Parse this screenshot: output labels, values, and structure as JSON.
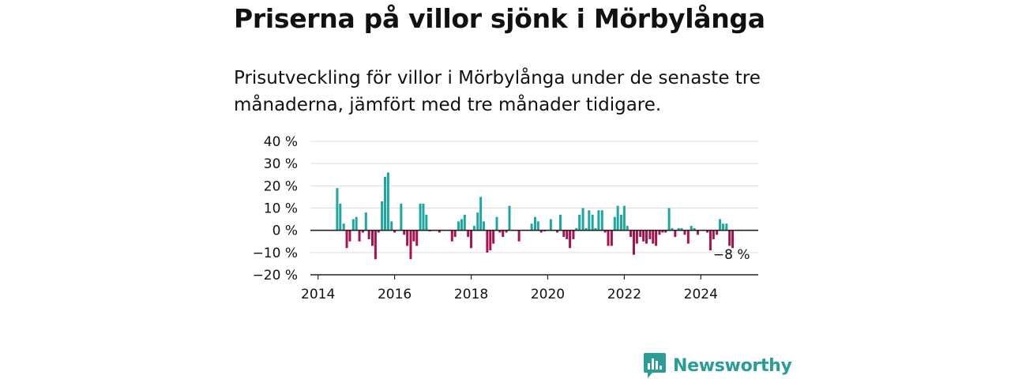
{
  "title": "Priserna på villor sjönk i Mörbylånga",
  "subtitle": "Prisutveckling för villor i Mörbylånga under de senaste tre månaderna, jämfört med tre månader tidigare.",
  "logo_text": "Newsworthy",
  "colors": {
    "positive": "#1ea6a1",
    "negative": "#a8124f",
    "grid": "#dddddd",
    "axis": "#222222",
    "brand": "#2a9d97"
  },
  "chart_data": {
    "type": "bar",
    "title": "",
    "xlabel": "",
    "ylabel": "",
    "ylim": [
      -20,
      40
    ],
    "yticks": [
      40,
      30,
      20,
      10,
      0,
      -10,
      -20
    ],
    "ytick_labels": [
      "40 %",
      "30 %",
      "20 %",
      "10 %",
      "0 %",
      "−10 %",
      "−20 %"
    ],
    "xlim": [
      2013.8,
      2025.5
    ],
    "xticks": [
      "2014",
      "2016",
      "2018",
      "2020",
      "2022",
      "2024"
    ],
    "grid": true,
    "annotation": {
      "text": "−8 %",
      "x": 2024.83,
      "y": -8
    },
    "x": [
      2014.5,
      2014.58,
      2014.67,
      2014.75,
      2014.83,
      2014.92,
      2015.0,
      2015.08,
      2015.17,
      2015.25,
      2015.33,
      2015.42,
      2015.5,
      2015.58,
      2015.67,
      2015.75,
      2015.83,
      2015.92,
      2016.0,
      2016.17,
      2016.25,
      2016.33,
      2016.42,
      2016.5,
      2016.58,
      2016.67,
      2016.75,
      2016.83,
      2016.92,
      2017.17,
      2017.5,
      2017.58,
      2017.67,
      2017.75,
      2017.83,
      2017.92,
      2018.0,
      2018.08,
      2018.17,
      2018.25,
      2018.33,
      2018.42,
      2018.5,
      2018.58,
      2018.67,
      2018.75,
      2018.83,
      2018.92,
      2019.0,
      2019.25,
      2019.58,
      2019.67,
      2019.75,
      2019.83,
      2019.92,
      2020.08,
      2020.25,
      2020.33,
      2020.42,
      2020.5,
      2020.58,
      2020.67,
      2020.75,
      2020.83,
      2020.92,
      2021.0,
      2021.08,
      2021.17,
      2021.25,
      2021.33,
      2021.42,
      2021.5,
      2021.58,
      2021.67,
      2021.75,
      2021.83,
      2021.92,
      2022.0,
      2022.08,
      2022.17,
      2022.25,
      2022.33,
      2022.42,
      2022.5,
      2022.58,
      2022.67,
      2022.75,
      2022.83,
      2022.92,
      2023.0,
      2023.08,
      2023.17,
      2023.25,
      2023.33,
      2023.42,
      2023.5,
      2023.58,
      2023.67,
      2023.75,
      2023.83,
      2023.92,
      2024.17,
      2024.25,
      2024.33,
      2024.42,
      2024.5,
      2024.58,
      2024.67,
      2024.75,
      2024.83
    ],
    "values": [
      19,
      12,
      3,
      -8,
      -5,
      5,
      6,
      -5,
      -1,
      8,
      -4,
      -7,
      -13,
      -1,
      13,
      24,
      26,
      4,
      -1,
      12,
      -2,
      -7,
      -13,
      -5,
      -7,
      12,
      12,
      7,
      -0.5,
      -1,
      -5,
      -3,
      4,
      5,
      7,
      -3,
      -8,
      2,
      8,
      15,
      4,
      -10,
      -9,
      -6,
      6,
      -1,
      -3,
      -1,
      11,
      -5,
      3,
      6,
      4,
      -1,
      -0.5,
      5,
      -1,
      7,
      -3,
      -4,
      -8,
      -4,
      1,
      7,
      10,
      1,
      9,
      7,
      1,
      9,
      9,
      -1,
      -7,
      -7,
      6,
      11,
      7,
      11,
      2,
      -3,
      -11,
      -6,
      -3,
      -5,
      -6,
      -4,
      -6,
      -7,
      -2,
      -1,
      -1,
      10,
      1,
      -3,
      1,
      1,
      -2,
      -6,
      2,
      1,
      -2,
      -1,
      -9,
      -4,
      -2,
      5,
      3,
      3,
      -7,
      -8
    ]
  }
}
